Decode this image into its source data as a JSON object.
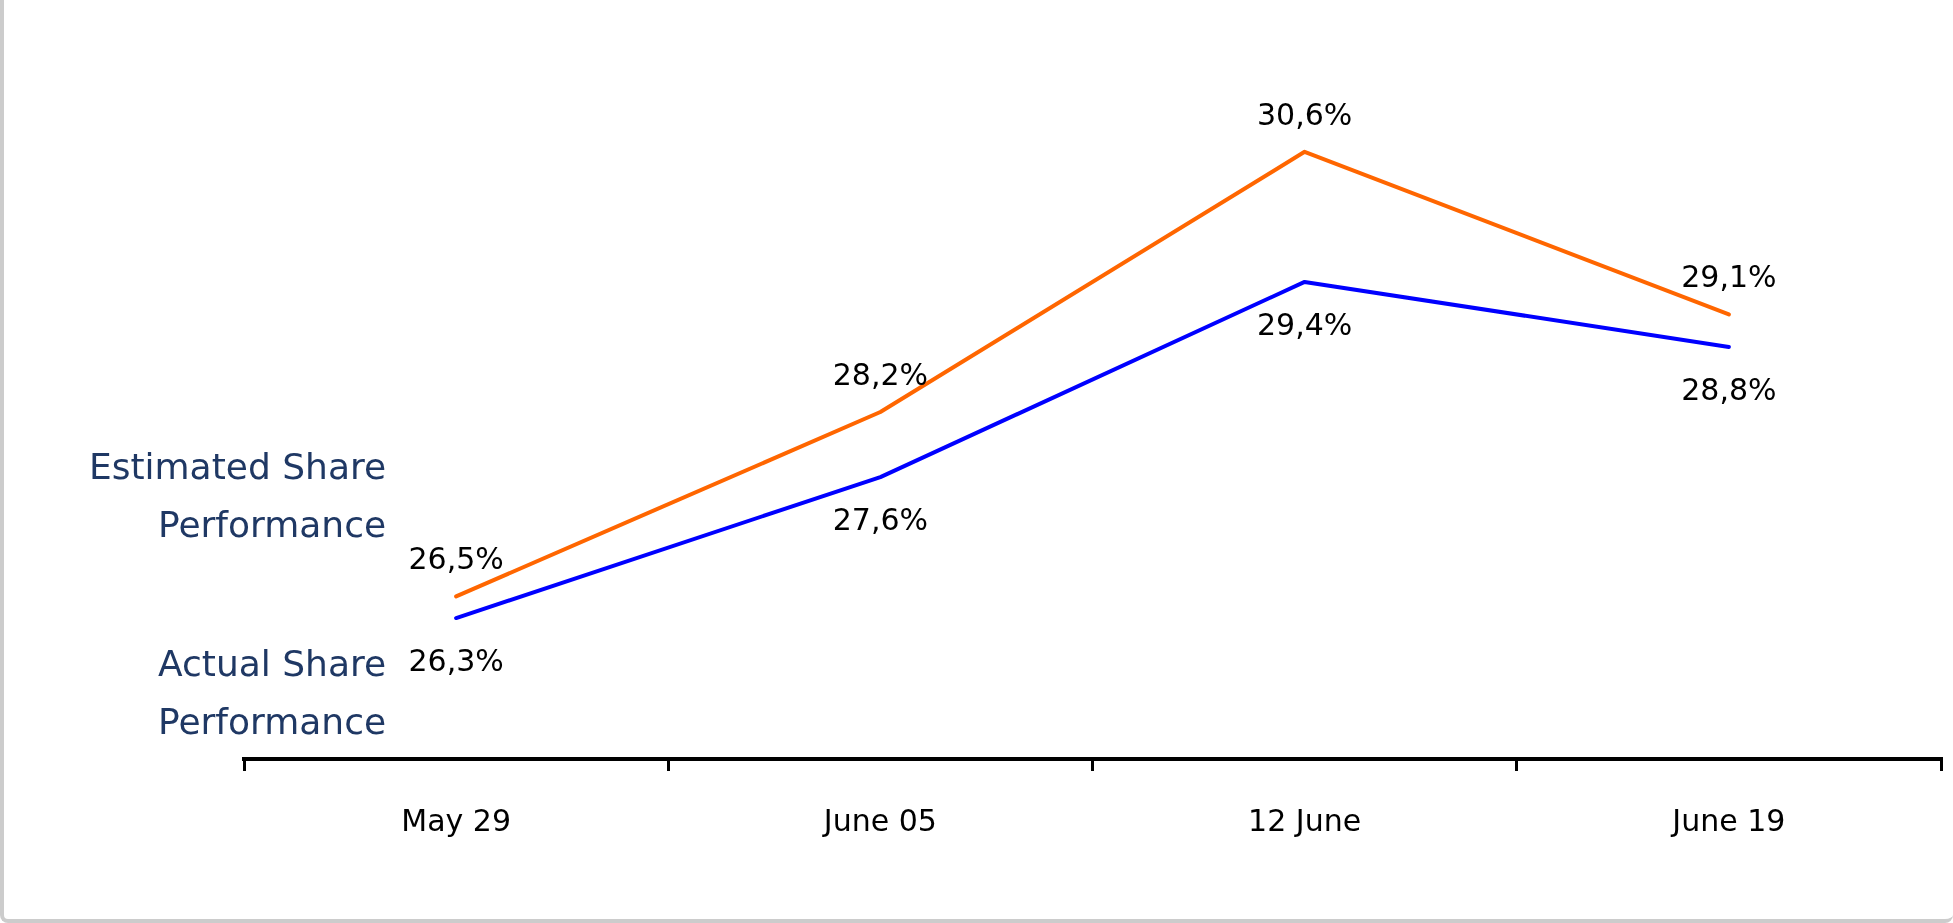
{
  "chart_data": {
    "type": "line",
    "categories": [
      "May 29",
      "June 05",
      "12 June",
      "June 19"
    ],
    "series": [
      {
        "name": "Estimated Share Performance",
        "color": "#ff6600",
        "values": [
          26.5,
          28.2,
          30.6,
          29.1
        ],
        "value_labels": [
          "26,5%",
          "28,2%",
          "30,6%",
          "29,1%"
        ]
      },
      {
        "name": "Actual Share Performance",
        "color": "#0000ff",
        "values": [
          26.3,
          27.6,
          29.4,
          28.8
        ],
        "value_labels": [
          "26,3%",
          "27,6%",
          "29,4%",
          "28,8%"
        ]
      }
    ],
    "tick_labels": "x",
    "legend": false,
    "grid": false,
    "marker": "none",
    "line_style": "solid"
  }
}
